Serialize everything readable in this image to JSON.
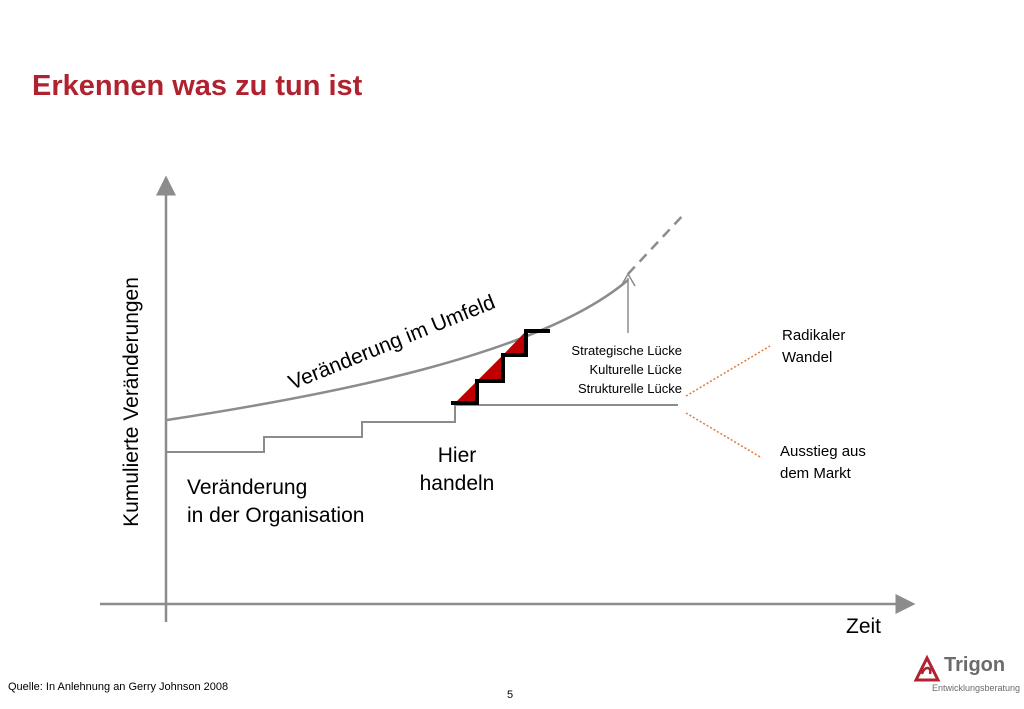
{
  "slide": {
    "title": "Erkennen was zu tun ist",
    "source": "Quelle: In Anlehnung an Gerry Johnson 2008",
    "page_number": "5"
  },
  "diagram": {
    "y_axis_label": "Kumulierte Veränderungen",
    "x_axis_label": "Zeit",
    "environment_curve_label": "Veränderung im Umfeld",
    "organisation_label_line1": "Veränderung",
    "organisation_label_line2": "in der Organisation",
    "action_label_line1": "Hier",
    "action_label_line2": "handeln",
    "gaps": [
      "Strategische Lücke",
      "Kulturelle Lücke",
      "Strukturelle Lücke"
    ],
    "outcome_top_line1": "Radikaler",
    "outcome_top_line2": "Wandel",
    "outcome_bottom_line1": "Ausstieg aus",
    "outcome_bottom_line2": "dem Markt"
  },
  "logo": {
    "name": "Trigon",
    "subtitle": "Entwicklungsberatung"
  },
  "colors": {
    "title": "#b0222f",
    "axis": "#8c8c8c",
    "gap_fill": "#c00000",
    "dotted_orange": "#e07b39"
  }
}
